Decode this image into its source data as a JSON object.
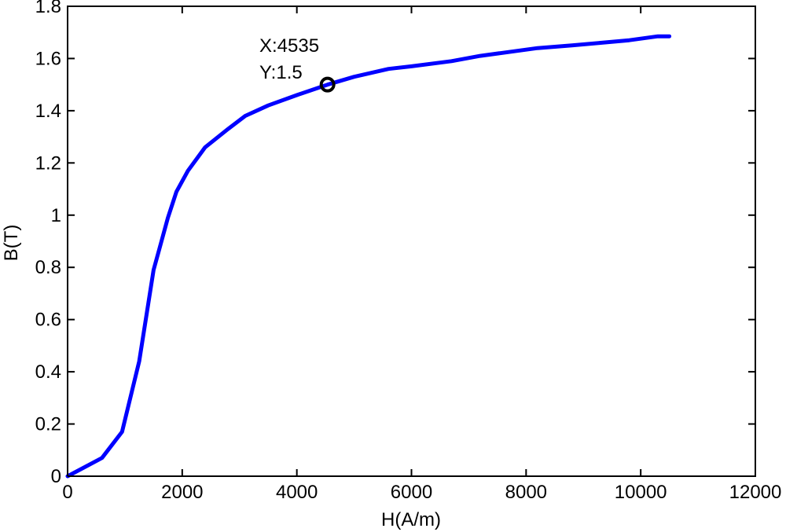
{
  "chart_data": {
    "type": "line",
    "title": "",
    "xlabel": "H(A/m)",
    "ylabel": "B(T)",
    "xlim": [
      0,
      12000
    ],
    "ylim": [
      0,
      1.8
    ],
    "xticks": [
      0,
      2000,
      4000,
      6000,
      8000,
      10000,
      12000
    ],
    "yticks": [
      0,
      0.2,
      0.4,
      0.6,
      0.8,
      1,
      1.2,
      1.4,
      1.6,
      1.8
    ],
    "xtick_labels": [
      "0",
      "2000",
      "4000",
      "6000",
      "8000",
      "10000",
      "12000"
    ],
    "ytick_labels": [
      "0",
      "0.2",
      "0.4",
      "0.6",
      "0.8",
      "1",
      "1.2",
      "1.4",
      "1.6",
      "1.8"
    ],
    "grid": false,
    "series": [
      {
        "color": "#0000ff",
        "x": [
          0,
          600,
          950,
          1250,
          1500,
          1600,
          1750,
          1900,
          2100,
          2400,
          2800,
          3100,
          3500,
          4000,
          4535,
          5000,
          5600,
          6000,
          6700,
          7200,
          8200,
          8800,
          9300,
          9800,
          10300,
          10500
        ],
        "y": [
          0,
          0.07,
          0.17,
          0.44,
          0.79,
          0.87,
          0.99,
          1.09,
          1.17,
          1.26,
          1.33,
          1.38,
          1.42,
          1.46,
          1.5,
          1.53,
          1.56,
          1.57,
          1.59,
          1.61,
          1.64,
          1.65,
          1.66,
          1.67,
          1.685,
          1.685
        ]
      }
    ],
    "annotations": [
      {
        "x": 4535,
        "y": 1.5,
        "x_text": "X:4535",
        "y_text": "Y:1.5"
      }
    ]
  }
}
